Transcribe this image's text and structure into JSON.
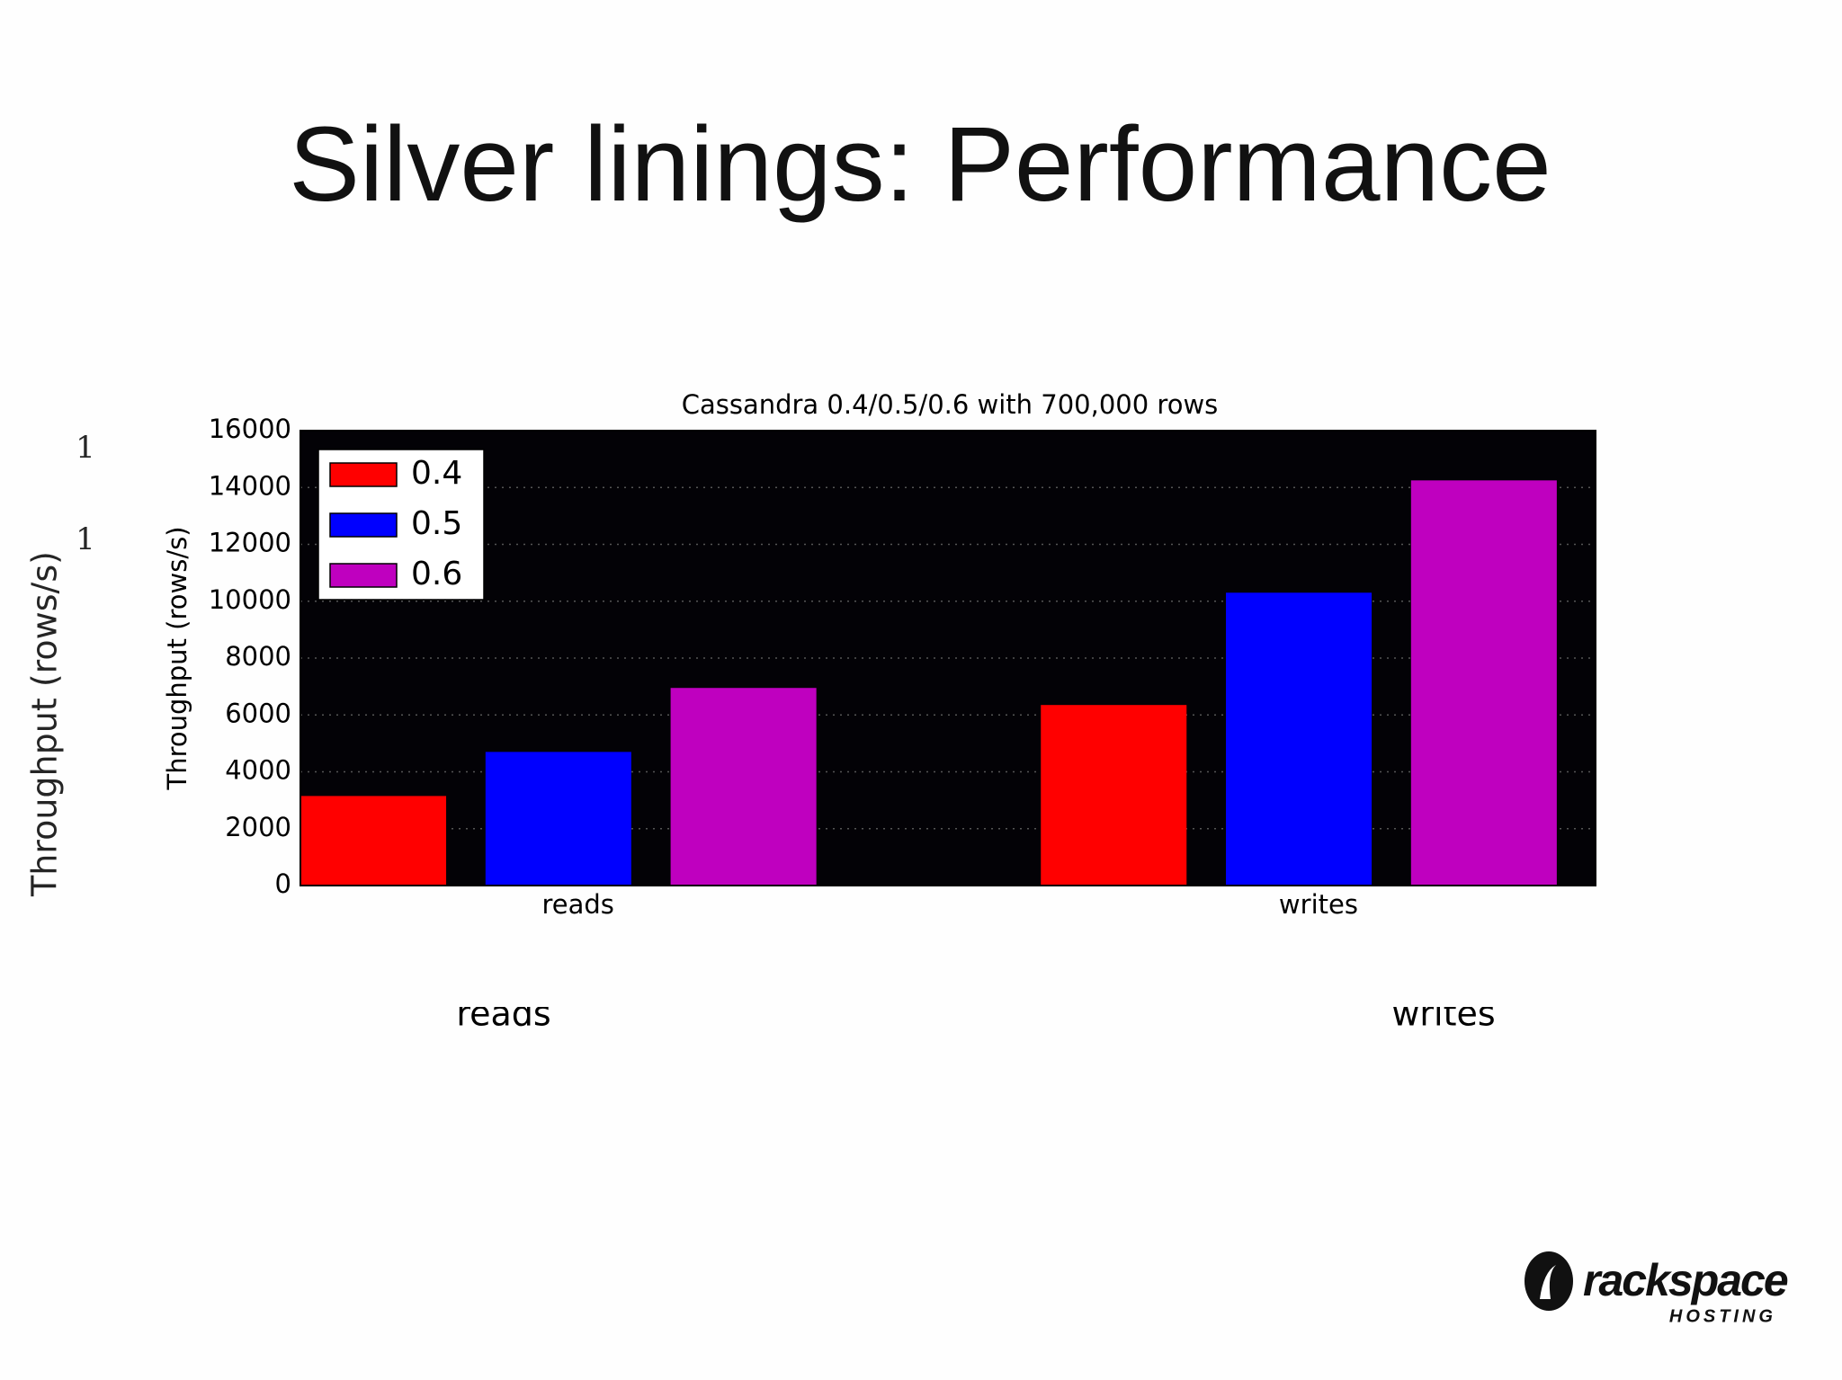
{
  "slide": {
    "title": "Silver linings: Performance"
  },
  "ghost": {
    "ylabel": "Throughput (rows/s)",
    "ticks": [
      "1",
      "1"
    ],
    "categories": [
      "reads",
      "writes"
    ]
  },
  "chart_data": {
    "type": "bar",
    "title": "Cassandra 0.4/0.5/0.6 with 700,000 rows",
    "ylabel": "Throughput (rows/s)",
    "categories": [
      "reads",
      "writes"
    ],
    "series": [
      {
        "name": "0.4",
        "color": "#ff0000",
        "values": [
          3150,
          6350
        ]
      },
      {
        "name": "0.5",
        "color": "#0000ff",
        "values": [
          4700,
          10300
        ]
      },
      {
        "name": "0.6",
        "color": "#bf00bf",
        "values": [
          6950,
          14250
        ]
      }
    ],
    "ylim": [
      0,
      16000
    ],
    "yticks": [
      0,
      2000,
      4000,
      6000,
      8000,
      10000,
      12000,
      14000,
      16000
    ],
    "grid": true,
    "legend": "upper-left",
    "background": "#030206"
  },
  "logo": {
    "name": "rackspace",
    "sub": "HOSTING"
  }
}
